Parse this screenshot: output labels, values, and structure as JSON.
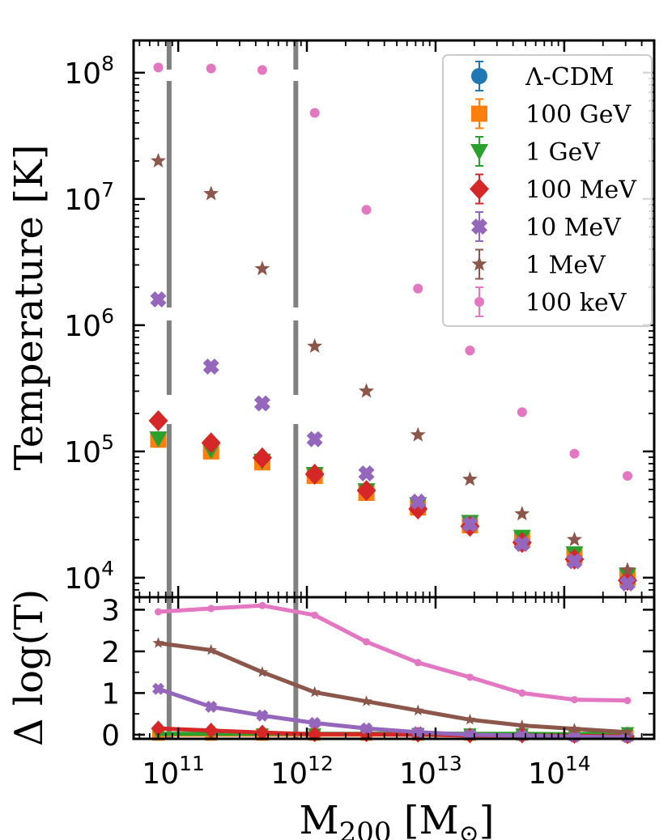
{
  "chart_data": [
    {
      "type": "scatter",
      "panel": "top",
      "ylabel": "Temperature [K]",
      "yscale": "log",
      "ylim": [
        7000,
        180000000
      ],
      "xscale": "log",
      "xlim": [
        45000000000,
        500000000000000
      ],
      "y_ticks": [
        {
          "base": "10",
          "exp": "4",
          "value": 10000
        },
        {
          "base": "10",
          "exp": "5",
          "value": 100000
        },
        {
          "base": "10",
          "exp": "6",
          "value": 1000000
        },
        {
          "base": "10",
          "exp": "7",
          "value": 10000000
        },
        {
          "base": "10",
          "exp": "8",
          "value": 100000000
        }
      ],
      "x": [
        70000000000.0,
        180000000000.0,
        450000000000.0,
        1150000000000.0,
        2900000000000.0,
        7300000000000.0,
        18500000000000.0,
        47000000000000.0,
        120000000000000.0,
        310000000000000.0
      ],
      "series": [
        {
          "name": "Λ-CDM",
          "marker": "circle",
          "color": "#1f77b4",
          "values": [
            125000,
            101000,
            83000,
            65000,
            48000,
            36000,
            26500,
            20000,
            15000,
            10500
          ]
        },
        {
          "name": "100 GeV",
          "marker": "square",
          "color": "#ff7f0e",
          "values": [
            124000,
            100000,
            82000,
            64000,
            47000,
            36000,
            26000,
            20000,
            15000,
            10000
          ]
        },
        {
          "name": "1 GeV",
          "marker": "triangle-down",
          "color": "#2ca02c",
          "values": [
            126000,
            102000,
            84000,
            66000,
            49000,
            38000,
            27500,
            21000,
            15500,
            10500
          ]
        },
        {
          "name": "100 MeV",
          "marker": "diamond",
          "color": "#d62728",
          "values": [
            175000,
            117000,
            89000,
            66000,
            49000,
            35000,
            25500,
            19000,
            14000,
            9500
          ]
        },
        {
          "name": "10 MeV",
          "marker": "x-filled",
          "color": "#9467bd",
          "values": [
            1600000,
            470000,
            240000,
            125000,
            67000,
            40000,
            26500,
            18500,
            13500,
            9000
          ]
        },
        {
          "name": "1 MeV",
          "marker": "star",
          "color": "#8c564b",
          "values": [
            20000000,
            11000000,
            2800000,
            680000,
            300000,
            135000,
            60000,
            32000,
            20000,
            11500
          ]
        },
        {
          "name": "100 keV",
          "marker": "small-circle",
          "color": "#e377c2",
          "values": [
            110000000,
            108000000,
            105000000,
            48000000,
            8200000,
            1950000,
            630000,
            205000,
            96000,
            64000
          ]
        }
      ],
      "vlines": [
        85000000000.0,
        820000000000.0
      ],
      "legend": "top-right"
    },
    {
      "type": "line",
      "panel": "bottom",
      "ylabel": "Δ log(T)",
      "ylim": [
        -0.1,
        3.3
      ],
      "y_ticks": [
        "0",
        "1",
        "2",
        "3"
      ],
      "xlabel": "M200 [M⊙]",
      "x_ticks": [
        {
          "base": "10",
          "exp": "11",
          "value": 100000000000.0
        },
        {
          "base": "10",
          "exp": "12",
          "value": 1000000000000.0
        },
        {
          "base": "10",
          "exp": "13",
          "value": 10000000000000.0
        },
        {
          "base": "10",
          "exp": "14",
          "value": 100000000000000.0
        }
      ],
      "x": [
        70000000000.0,
        180000000000.0,
        450000000000.0,
        1150000000000.0,
        2900000000000.0,
        7300000000000.0,
        18500000000000.0,
        47000000000000.0,
        120000000000000.0,
        310000000000000.0
      ],
      "series": [
        {
          "name": "100 GeV",
          "marker": "square",
          "color": "#ff7f0e",
          "values": [
            0.0,
            0.0,
            0.0,
            0.0,
            0.0,
            0.0,
            0.0,
            0.0,
            0.0,
            -0.02
          ]
        },
        {
          "name": "1 GeV",
          "marker": "triangle-down",
          "color": "#2ca02c",
          "values": [
            0.02,
            0.02,
            0.02,
            0.02,
            0.02,
            0.03,
            0.02,
            0.02,
            0.01,
            0.05
          ]
        },
        {
          "name": "100 MeV",
          "marker": "diamond",
          "color": "#d62728",
          "values": [
            0.15,
            0.1,
            0.05,
            0.01,
            0.01,
            0.0,
            -0.02,
            -0.02,
            -0.03,
            -0.04
          ]
        },
        {
          "name": "10 MeV",
          "marker": "x-filled",
          "color": "#9467bd",
          "values": [
            1.1,
            0.67,
            0.46,
            0.28,
            0.15,
            0.06,
            0.0,
            -0.02,
            -0.05,
            -0.06
          ]
        },
        {
          "name": "1 MeV",
          "marker": "star",
          "color": "#8c564b",
          "values": [
            2.2,
            2.03,
            1.5,
            1.02,
            0.8,
            0.58,
            0.36,
            0.22,
            0.14,
            0.06
          ]
        },
        {
          "name": "100 keV",
          "marker": "small-circle",
          "color": "#e377c2",
          "values": [
            2.95,
            3.03,
            3.1,
            2.87,
            2.23,
            1.73,
            1.38,
            1.0,
            0.84,
            0.82
          ]
        }
      ],
      "vlines": [
        85000000000.0,
        820000000000.0
      ]
    }
  ],
  "labels": {
    "top_ylabel": "Temperature [K]",
    "bottom_ylabel": "Δ log(T)",
    "xlabel_main": "M",
    "xlabel_sub": "200",
    "xlabel_unit_open": " [M",
    "xlabel_unit_sub": "⊙",
    "xlabel_unit_close": "]"
  }
}
